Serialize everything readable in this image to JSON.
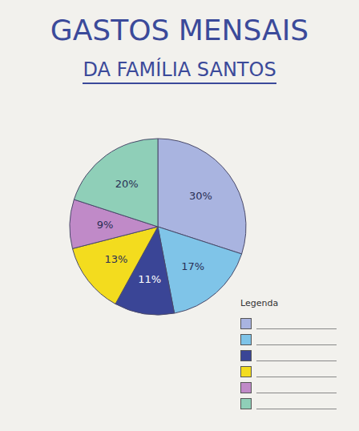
{
  "chart_data": {
    "type": "pie",
    "title": "GASTOS MENSAIS",
    "subtitle": "DA FAMÍLIA SANTOS",
    "values": [
      30,
      17,
      11,
      13,
      9,
      20
    ],
    "value_labels": [
      "30%",
      "17%",
      "11%",
      "13%",
      "9%",
      "20%"
    ],
    "colors": [
      "#a9b4e0",
      "#7fc4e8",
      "#3a4596",
      "#f3dc1e",
      "#c08ac8",
      "#8fcfb8"
    ],
    "data_labels": true,
    "legend": "bottom-right",
    "legend_title": "Legenda"
  }
}
